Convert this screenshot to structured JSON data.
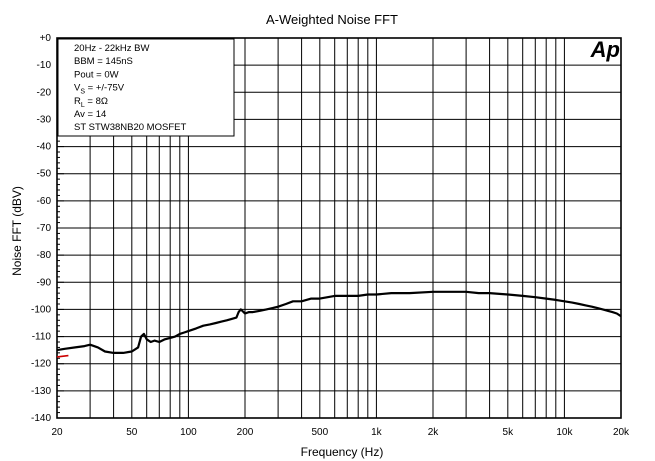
{
  "chart_data": {
    "type": "line",
    "title": "A-Weighted Noise FFT",
    "xlabel": "Frequency (Hz)",
    "ylabel": "Noise FFT (dBV)",
    "x_scale": "log",
    "xlim": [
      20,
      20000
    ],
    "ylim": [
      -140,
      0
    ],
    "grid": true,
    "x_ticks": [
      {
        "value": 20,
        "label": "20"
      },
      {
        "value": 50,
        "label": "50"
      },
      {
        "value": 100,
        "label": "100"
      },
      {
        "value": 200,
        "label": "200"
      },
      {
        "value": 500,
        "label": "500"
      },
      {
        "value": 1000,
        "label": "1k"
      },
      {
        "value": 2000,
        "label": "2k"
      },
      {
        "value": 5000,
        "label": "5k"
      },
      {
        "value": 10000,
        "label": "10k"
      },
      {
        "value": 20000,
        "label": "20k"
      }
    ],
    "y_ticks": [
      {
        "value": 0,
        "label": "+0"
      },
      {
        "value": -10,
        "label": "-10"
      },
      {
        "value": -20,
        "label": "-20"
      },
      {
        "value": -30,
        "label": "-30"
      },
      {
        "value": -40,
        "label": "-40"
      },
      {
        "value": -50,
        "label": "-50"
      },
      {
        "value": -60,
        "label": "-60"
      },
      {
        "value": -70,
        "label": "-70"
      },
      {
        "value": -80,
        "label": "-80"
      },
      {
        "value": -90,
        "label": "-90"
      },
      {
        "value": -100,
        "label": "-100"
      },
      {
        "value": -110,
        "label": "-110"
      },
      {
        "value": -120,
        "label": "-120"
      },
      {
        "value": -130,
        "label": "-130"
      },
      {
        "value": -140,
        "label": "-140"
      }
    ],
    "annotations": [
      {
        "base": "20Hz - 22kHz BW",
        "sub": "",
        "tail": ""
      },
      {
        "base": "BBM = 145nS",
        "sub": "",
        "tail": ""
      },
      {
        "base": "Pout = 0W",
        "sub": "",
        "tail": ""
      },
      {
        "base": "V",
        "sub": "S",
        "tail": " = +/-75V"
      },
      {
        "base": "R",
        "sub": "L",
        "tail": " = 8Ω"
      },
      {
        "base": "Av = 14",
        "sub": "",
        "tail": ""
      },
      {
        "base": "ST STW38NB20 MOSFET",
        "sub": "",
        "tail": ""
      }
    ],
    "logo": "Ap",
    "series": [
      {
        "color": "#000000",
        "x": [
          20,
          22,
          25,
          28,
          30,
          33,
          36,
          40,
          45,
          50,
          54,
          56,
          58,
          60,
          63,
          66,
          70,
          75,
          80,
          85,
          90,
          95,
          100,
          110,
          120,
          130,
          140,
          150,
          160,
          170,
          180,
          185,
          190,
          200,
          210,
          220,
          240,
          260,
          280,
          300,
          330,
          360,
          400,
          450,
          500,
          550,
          600,
          650,
          700,
          800,
          900,
          1000,
          1200,
          1500,
          2000,
          2500,
          3000,
          3500,
          4000,
          5000,
          6000,
          7000,
          8000,
          9000,
          10000,
          11000,
          12000,
          13000,
          14000,
          15000,
          16000,
          17000,
          18000,
          19000,
          20000
        ],
        "y": [
          -115,
          -114.5,
          -114,
          -113.5,
          -113,
          -114,
          -115.5,
          -116,
          -116,
          -115.5,
          -114,
          -110,
          -109,
          -111,
          -112,
          -111.5,
          -112,
          -111,
          -110.5,
          -110,
          -109,
          -108.5,
          -108,
          -107,
          -106,
          -105.5,
          -105,
          -104.5,
          -104,
          -103.5,
          -103,
          -101,
          -100,
          -101.5,
          -101,
          -101,
          -100.5,
          -100,
          -99.5,
          -99,
          -98,
          -97,
          -97,
          -96,
          -96,
          -95.5,
          -95,
          -95,
          -95,
          -95,
          -94.5,
          -94.5,
          -94,
          -94,
          -93.5,
          -93.5,
          -93.5,
          -94,
          -94,
          -94.5,
          -95,
          -95.5,
          -96,
          -96.5,
          -97,
          -97.5,
          -98,
          -98.5,
          -99,
          -99.5,
          -100,
          -100.5,
          -101,
          -101.5,
          -102.5
        ]
      },
      {
        "color": "#cc0000",
        "x": [
          20,
          23
        ],
        "y": [
          -117.5,
          -117
        ]
      }
    ]
  }
}
